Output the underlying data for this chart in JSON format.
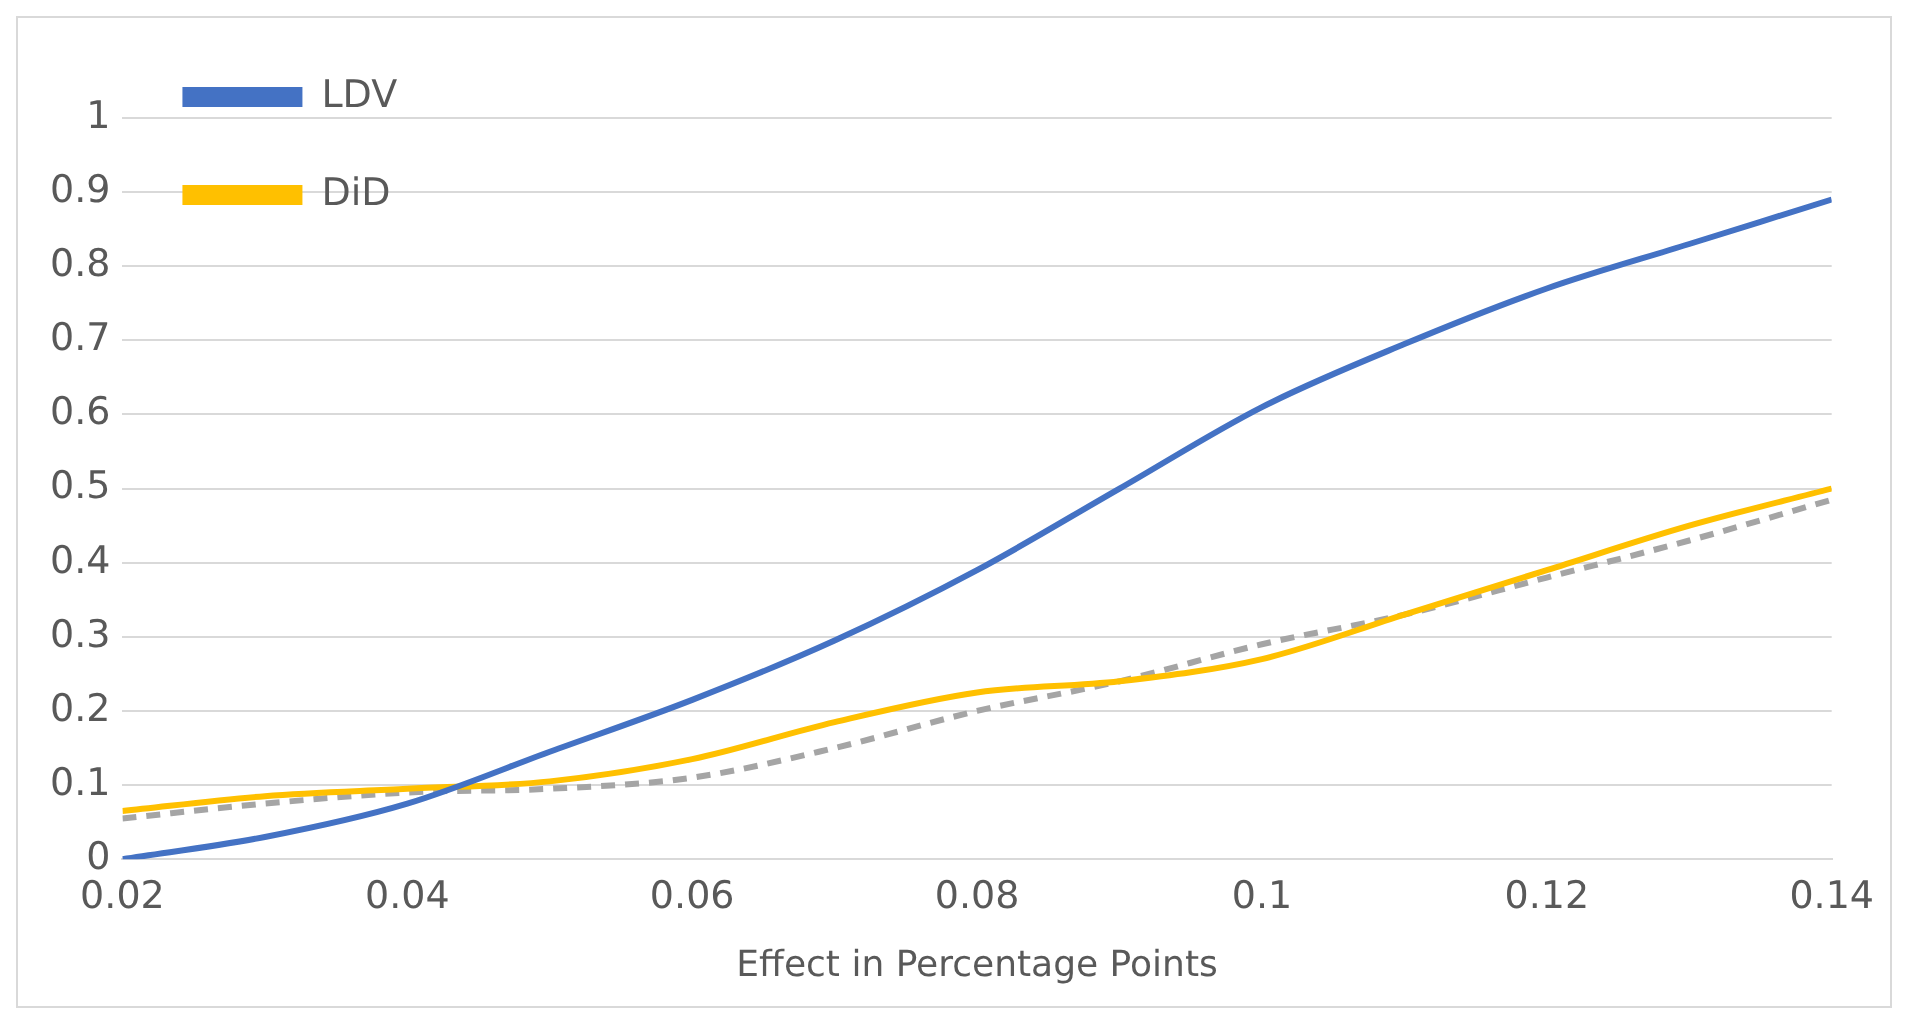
{
  "chart_data": {
    "type": "line",
    "xlabel": "Effect in Percentage Points",
    "x": [
      0.02,
      0.03,
      0.04,
      0.05,
      0.06,
      0.07,
      0.08,
      0.09,
      0.1,
      0.11,
      0.12,
      0.13,
      0.14
    ],
    "series": [
      {
        "name": "LDV",
        "color": "#4472c4",
        "values": [
          0,
          0.03,
          0.075,
          0.145,
          0.215,
          0.295,
          0.39,
          0.5,
          0.61,
          0.695,
          0.77,
          0.83,
          0.89
        ]
      },
      {
        "name": "DiD",
        "color": "#ffc000",
        "values": [
          0.065,
          0.085,
          0.095,
          0.105,
          0.135,
          0.185,
          0.225,
          0.24,
          0.27,
          0.33,
          0.39,
          0.45,
          0.5
        ]
      },
      {
        "color": "#a5a5a5",
        "line_style": "dashed",
        "values": [
          0.055,
          0.075,
          0.09,
          0.095,
          0.11,
          0.15,
          0.2,
          0.24,
          0.29,
          0.33,
          0.38,
          0.43,
          0.485
        ]
      }
    ],
    "xlim": [
      0.02,
      0.14
    ],
    "xticks": [
      0.02,
      0.04,
      0.06,
      0.08,
      0.1,
      0.12,
      0.14
    ],
    "ylim": [
      0,
      1
    ],
    "yticks": [
      0,
      0.1,
      0.2,
      0.3,
      0.4,
      0.5,
      0.6,
      0.7,
      0.8,
      0.9,
      1
    ],
    "grid": "y",
    "legend": "top left",
    "marker": "none",
    "line_style": "solid"
  }
}
